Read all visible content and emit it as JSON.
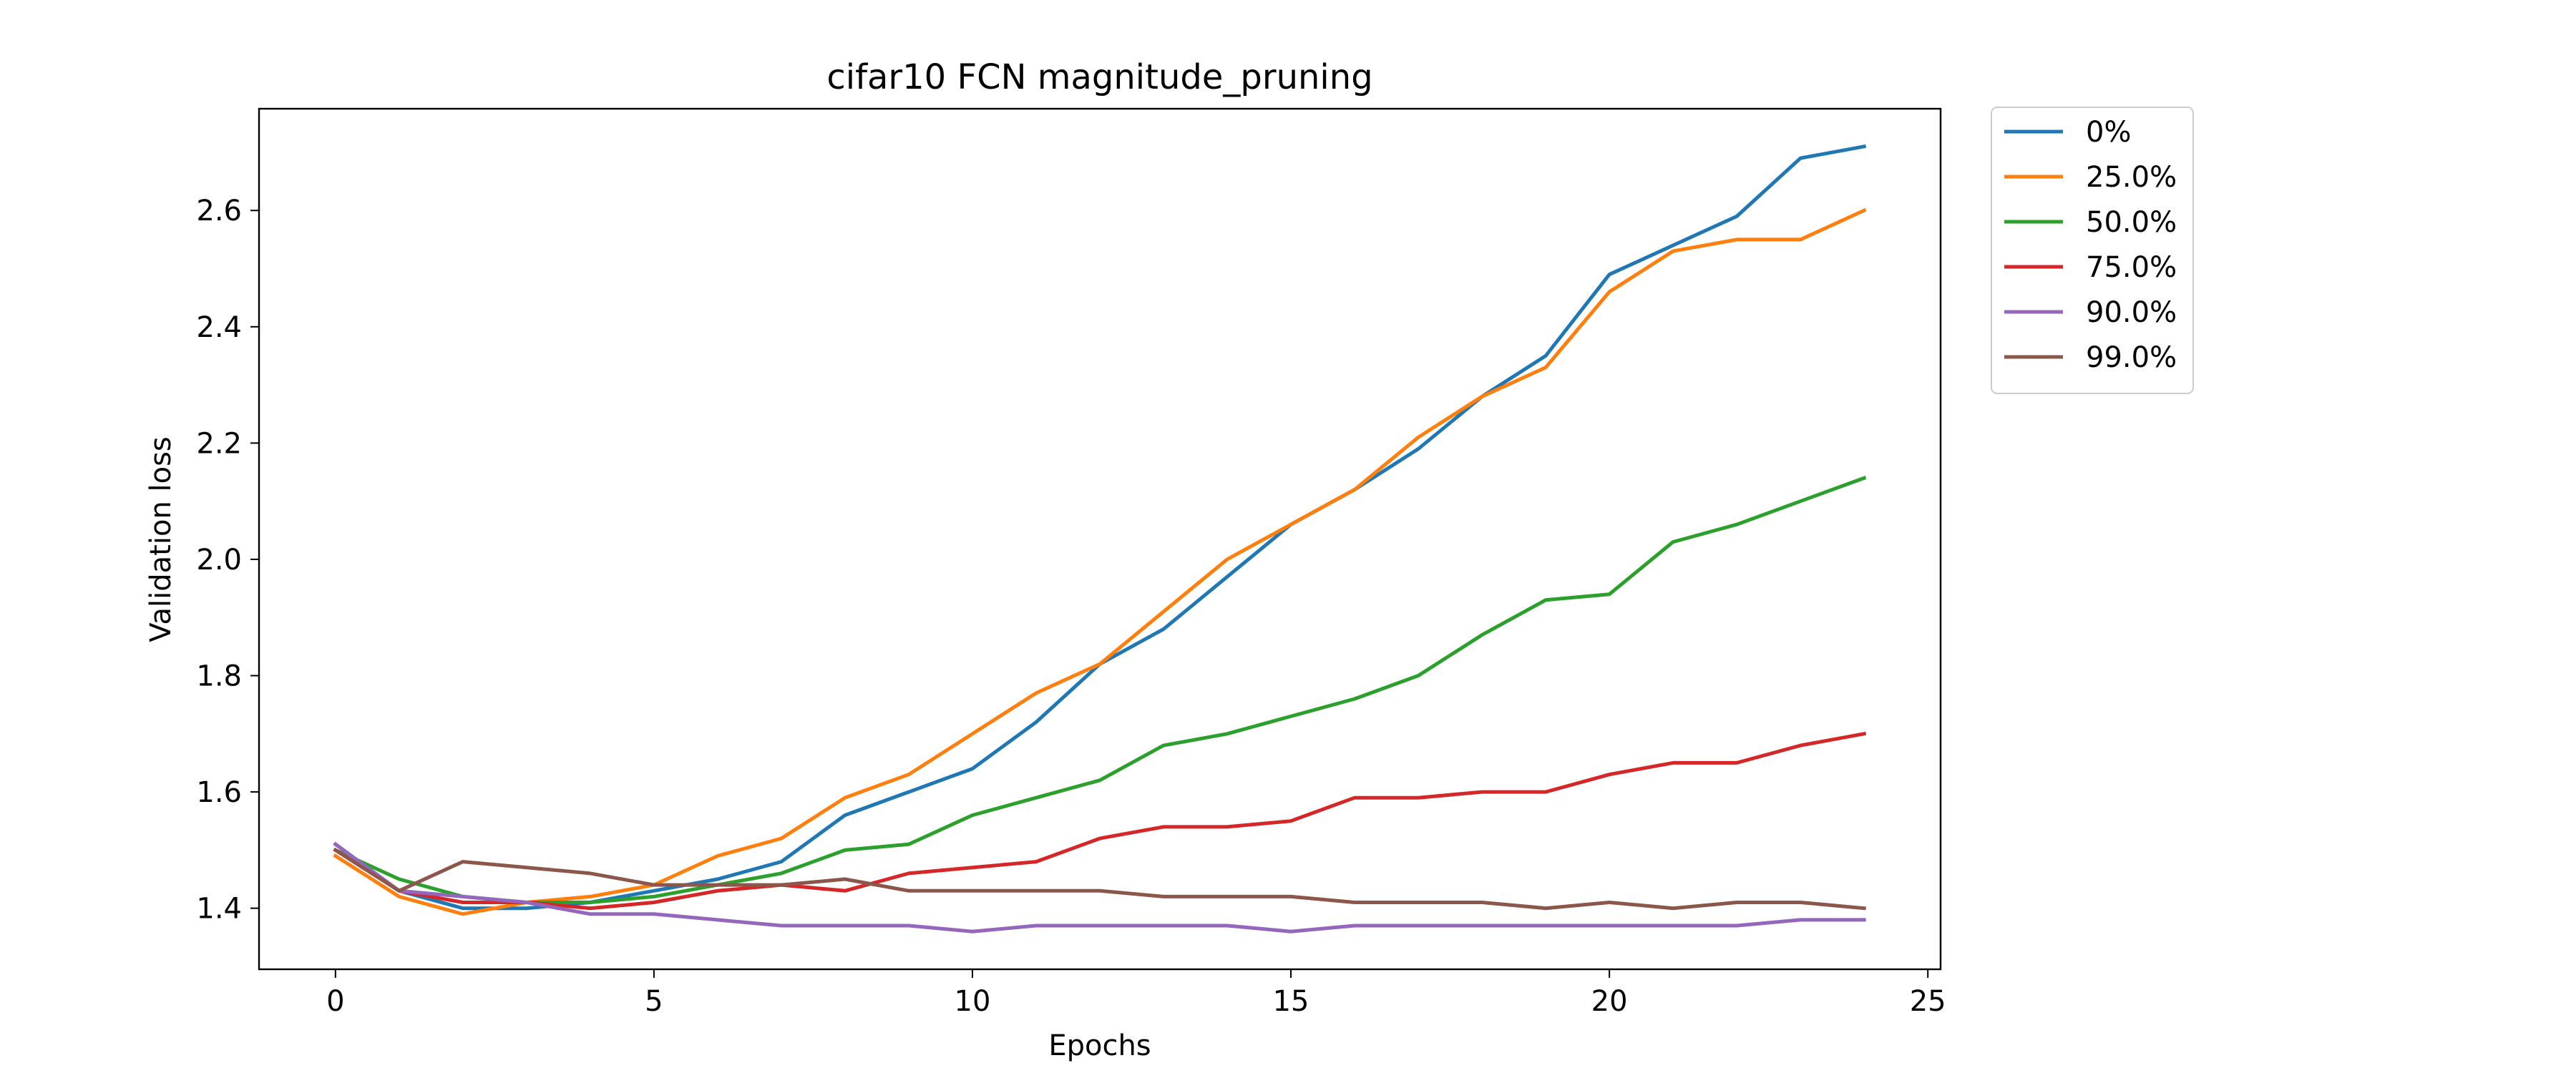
{
  "chart_data": {
    "type": "line",
    "title": "cifar10 FCN magnitude_pruning",
    "xlabel": "Epochs",
    "ylabel": "Validation loss",
    "xlim": [
      -1.2,
      25.2
    ],
    "ylim": [
      1.295,
      2.775
    ],
    "xticks": [
      0,
      5,
      10,
      15,
      20,
      25
    ],
    "yticks": [
      1.4,
      1.6,
      1.8,
      2.0,
      2.2,
      2.4,
      2.6
    ],
    "xtick_labels": [
      "0",
      "5",
      "10",
      "15",
      "20",
      "25"
    ],
    "ytick_labels": [
      "1.4",
      "1.6",
      "1.8",
      "2.0",
      "2.2",
      "2.4",
      "2.6"
    ],
    "grid": false,
    "legend_position": "outside-top-right",
    "x": [
      0,
      1,
      2,
      3,
      4,
      5,
      6,
      7,
      8,
      9,
      10,
      11,
      12,
      13,
      14,
      15,
      16,
      17,
      18,
      19,
      20,
      21,
      22,
      23,
      24
    ],
    "series": [
      {
        "name": "0%",
        "color": "#1f77b4",
        "values": [
          1.51,
          1.43,
          1.4,
          1.4,
          1.41,
          1.43,
          1.45,
          1.48,
          1.56,
          1.6,
          1.64,
          1.72,
          1.82,
          1.88,
          1.97,
          2.06,
          2.12,
          2.19,
          2.28,
          2.35,
          2.49,
          2.54,
          2.59,
          2.69,
          2.71
        ]
      },
      {
        "name": "25.0%",
        "color": "#ff7f0e",
        "values": [
          1.49,
          1.42,
          1.39,
          1.41,
          1.42,
          1.44,
          1.49,
          1.52,
          1.59,
          1.63,
          1.7,
          1.77,
          1.82,
          1.91,
          2.0,
          2.06,
          2.12,
          2.21,
          2.28,
          2.33,
          2.46,
          2.53,
          2.55,
          2.55,
          2.6
        ]
      },
      {
        "name": "50.0%",
        "color": "#2ca02c",
        "values": [
          1.5,
          1.45,
          1.42,
          1.41,
          1.41,
          1.42,
          1.44,
          1.46,
          1.5,
          1.51,
          1.56,
          1.59,
          1.62,
          1.68,
          1.7,
          1.73,
          1.76,
          1.8,
          1.87,
          1.93,
          1.94,
          2.03,
          2.06,
          2.1,
          2.14
        ]
      },
      {
        "name": "75.0%",
        "color": "#d62728",
        "values": [
          1.5,
          1.43,
          1.41,
          1.41,
          1.4,
          1.41,
          1.43,
          1.44,
          1.43,
          1.46,
          1.47,
          1.48,
          1.52,
          1.54,
          1.54,
          1.55,
          1.59,
          1.59,
          1.6,
          1.6,
          1.63,
          1.65,
          1.65,
          1.68,
          1.7
        ]
      },
      {
        "name": "90.0%",
        "color": "#9467bd",
        "values": [
          1.51,
          1.43,
          1.42,
          1.41,
          1.39,
          1.39,
          1.38,
          1.37,
          1.37,
          1.37,
          1.36,
          1.37,
          1.37,
          1.37,
          1.37,
          1.36,
          1.37,
          1.37,
          1.37,
          1.37,
          1.37,
          1.37,
          1.37,
          1.38,
          1.38
        ]
      },
      {
        "name": "99.0%",
        "color": "#8c564b",
        "values": [
          1.5,
          1.43,
          1.48,
          1.47,
          1.46,
          1.44,
          1.44,
          1.44,
          1.45,
          1.43,
          1.43,
          1.43,
          1.43,
          1.42,
          1.42,
          1.42,
          1.41,
          1.41,
          1.41,
          1.4,
          1.41,
          1.4,
          1.41,
          1.41,
          1.4
        ]
      }
    ]
  }
}
